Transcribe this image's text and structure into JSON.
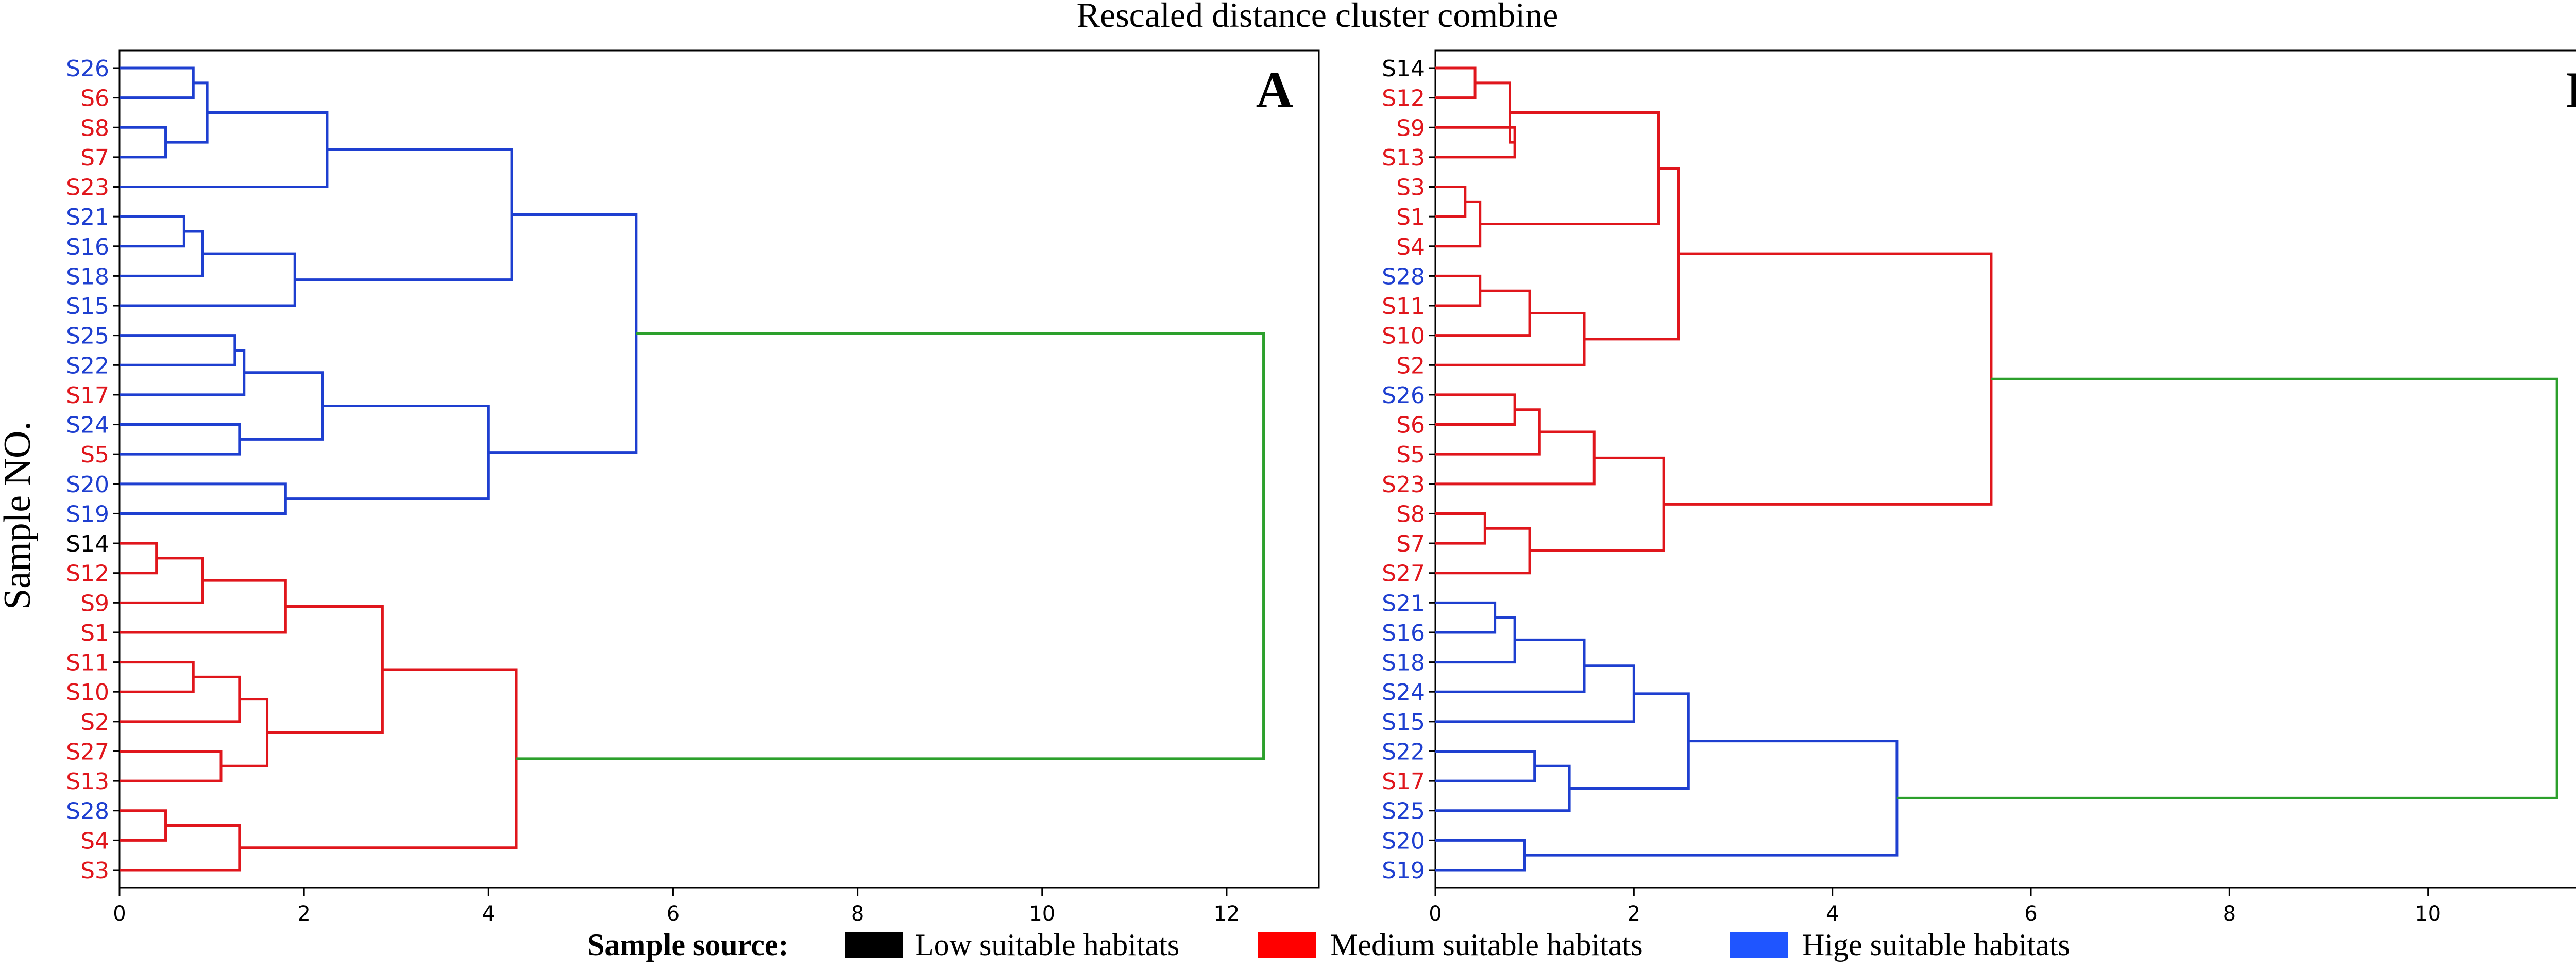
{
  "figure": {
    "title": "Rescaled distance cluster combine",
    "ylabel": "Sample NO.",
    "legend_title": "Sample source:",
    "legend_items": [
      {
        "label": "Low suitable habitats",
        "color": "#000000"
      },
      {
        "label": "Medium suitable habitats",
        "color": "#ff0000"
      },
      {
        "label": "Hige suitable habitats",
        "color": "#1f55ff"
      }
    ],
    "colors": {
      "low": "#000000",
      "medium": "#e0161c",
      "high": "#1e3fd0",
      "link": "#2ca02c"
    }
  },
  "chart_data": [
    {
      "type": "dendrogram",
      "panel": "A",
      "xlim": [
        0,
        13
      ],
      "xticks": [
        0,
        2,
        4,
        6,
        8,
        10,
        12
      ],
      "leaves": [
        {
          "label": "S26",
          "class": "high"
        },
        {
          "label": "S6",
          "class": "medium"
        },
        {
          "label": "S8",
          "class": "medium"
        },
        {
          "label": "S7",
          "class": "medium"
        },
        {
          "label": "S23",
          "class": "medium"
        },
        {
          "label": "S21",
          "class": "high"
        },
        {
          "label": "S16",
          "class": "high"
        },
        {
          "label": "S18",
          "class": "high"
        },
        {
          "label": "S15",
          "class": "high"
        },
        {
          "label": "S25",
          "class": "high"
        },
        {
          "label": "S22",
          "class": "high"
        },
        {
          "label": "S17",
          "class": "medium"
        },
        {
          "label": "S24",
          "class": "high"
        },
        {
          "label": "S5",
          "class": "medium"
        },
        {
          "label": "S20",
          "class": "high"
        },
        {
          "label": "S19",
          "class": "high"
        },
        {
          "label": "S14",
          "class": "low"
        },
        {
          "label": "S12",
          "class": "medium"
        },
        {
          "label": "S9",
          "class": "medium"
        },
        {
          "label": "S1",
          "class": "medium"
        },
        {
          "label": "S11",
          "class": "medium"
        },
        {
          "label": "S10",
          "class": "medium"
        },
        {
          "label": "S2",
          "class": "medium"
        },
        {
          "label": "S27",
          "class": "medium"
        },
        {
          "label": "S13",
          "class": "medium"
        },
        {
          "label": "S28",
          "class": "high"
        },
        {
          "label": "S4",
          "class": "medium"
        },
        {
          "label": "S3",
          "class": "medium"
        }
      ],
      "merges": [
        {
          "a": 0,
          "b": 1,
          "h": 0.8,
          "color": "high"
        },
        {
          "a": 2,
          "b": 3,
          "h": 0.5,
          "color": "high"
        },
        {
          "a": "n0",
          "b": "n1",
          "h": 0.95,
          "color": "high"
        },
        {
          "a": "n2",
          "b": 4,
          "h": 2.25,
          "color": "high"
        },
        {
          "a": 5,
          "b": 6,
          "h": 0.7,
          "color": "high"
        },
        {
          "a": "n4",
          "b": 7,
          "h": 0.9,
          "color": "high"
        },
        {
          "a": "n5",
          "b": 8,
          "h": 1.9,
          "color": "high"
        },
        {
          "a": "n3",
          "b": "n6",
          "h": 4.25,
          "color": "high"
        },
        {
          "a": 9,
          "b": 10,
          "h": 1.25,
          "color": "high"
        },
        {
          "a": "n8",
          "b": 11,
          "h": 1.35,
          "color": "high"
        },
        {
          "a": 12,
          "b": 13,
          "h": 1.3,
          "color": "high"
        },
        {
          "a": "n9",
          "b": "n10",
          "h": 2.2,
          "color": "high"
        },
        {
          "a": 14,
          "b": 15,
          "h": 1.8,
          "color": "high"
        },
        {
          "a": "n11",
          "b": "n12",
          "h": 4.0,
          "color": "high"
        },
        {
          "a": "n7",
          "b": "n13",
          "h": 5.6,
          "color": "high"
        },
        {
          "a": 16,
          "b": 17,
          "h": 0.4,
          "color": "medium"
        },
        {
          "a": "n15",
          "b": 18,
          "h": 0.9,
          "color": "medium"
        },
        {
          "a": "n16",
          "b": 19,
          "h": 1.8,
          "color": "medium"
        },
        {
          "a": 20,
          "b": 21,
          "h": 0.8,
          "color": "medium"
        },
        {
          "a": "n18",
          "b": 22,
          "h": 1.3,
          "color": "medium"
        },
        {
          "a": 23,
          "b": 24,
          "h": 1.1,
          "color": "medium"
        },
        {
          "a": "n19",
          "b": "n20",
          "h": 1.6,
          "color": "medium"
        },
        {
          "a": "n17",
          "b": "n21",
          "h": 2.85,
          "color": "medium"
        },
        {
          "a": 25,
          "b": 26,
          "h": 0.5,
          "color": "medium"
        },
        {
          "a": "n23",
          "b": 27,
          "h": 1.3,
          "color": "medium"
        },
        {
          "a": "n22",
          "b": "n24",
          "h": 4.3,
          "color": "medium"
        },
        {
          "a": "n14",
          "b": "n25",
          "h": 12.4,
          "color": "link"
        }
      ]
    },
    {
      "type": "dendrogram",
      "panel": "B",
      "xlim": [
        0,
        12
      ],
      "xticks": [
        0,
        2,
        4,
        6,
        8,
        10
      ],
      "leaves": [
        {
          "label": "S14",
          "class": "low"
        },
        {
          "label": "S12",
          "class": "medium"
        },
        {
          "label": "S9",
          "class": "medium"
        },
        {
          "label": "S13",
          "class": "medium"
        },
        {
          "label": "S3",
          "class": "medium"
        },
        {
          "label": "S1",
          "class": "medium"
        },
        {
          "label": "S4",
          "class": "medium"
        },
        {
          "label": "S28",
          "class": "high"
        },
        {
          "label": "S11",
          "class": "medium"
        },
        {
          "label": "S10",
          "class": "medium"
        },
        {
          "label": "S2",
          "class": "medium"
        },
        {
          "label": "S26",
          "class": "high"
        },
        {
          "label": "S6",
          "class": "medium"
        },
        {
          "label": "S5",
          "class": "medium"
        },
        {
          "label": "S23",
          "class": "medium"
        },
        {
          "label": "S8",
          "class": "medium"
        },
        {
          "label": "S7",
          "class": "medium"
        },
        {
          "label": "S27",
          "class": "medium"
        },
        {
          "label": "S21",
          "class": "high"
        },
        {
          "label": "S16",
          "class": "high"
        },
        {
          "label": "S18",
          "class": "high"
        },
        {
          "label": "S24",
          "class": "high"
        },
        {
          "label": "S15",
          "class": "high"
        },
        {
          "label": "S22",
          "class": "high"
        },
        {
          "label": "S17",
          "class": "medium"
        },
        {
          "label": "S25",
          "class": "high"
        },
        {
          "label": "S20",
          "class": "high"
        },
        {
          "label": "S19",
          "class": "high"
        }
      ],
      "merges": [
        {
          "a": 0,
          "b": 1,
          "h": 0.4,
          "color": "medium"
        },
        {
          "a": 2,
          "b": 3,
          "h": 0.8,
          "color": "medium"
        },
        {
          "a": "n0",
          "b": "n1",
          "h": 0.75,
          "color": "medium"
        },
        {
          "a": 4,
          "b": 5,
          "h": 0.3,
          "color": "medium"
        },
        {
          "a": "n3",
          "b": 6,
          "h": 0.45,
          "color": "medium"
        },
        {
          "a": "n2",
          "b": "n4",
          "h": 2.25,
          "color": "medium"
        },
        {
          "a": 7,
          "b": 8,
          "h": 0.45,
          "color": "medium"
        },
        {
          "a": "n6",
          "b": 9,
          "h": 0.95,
          "color": "medium"
        },
        {
          "a": "n7",
          "b": 10,
          "h": 1.5,
          "color": "medium"
        },
        {
          "a": "n5",
          "b": "n8",
          "h": 2.45,
          "color": "medium"
        },
        {
          "a": 11,
          "b": 12,
          "h": 0.8,
          "color": "medium"
        },
        {
          "a": "n10",
          "b": 13,
          "h": 1.05,
          "color": "medium"
        },
        {
          "a": "n11",
          "b": 14,
          "h": 1.6,
          "color": "medium"
        },
        {
          "a": 15,
          "b": 16,
          "h": 0.5,
          "color": "medium"
        },
        {
          "a": "n13",
          "b": 17,
          "h": 0.95,
          "color": "medium"
        },
        {
          "a": "n12",
          "b": "n14",
          "h": 2.3,
          "color": "medium"
        },
        {
          "a": "n9",
          "b": "n15",
          "h": 5.6,
          "color": "medium"
        },
        {
          "a": 18,
          "b": 19,
          "h": 0.6,
          "color": "high"
        },
        {
          "a": "n17",
          "b": 20,
          "h": 0.8,
          "color": "high"
        },
        {
          "a": "n18",
          "b": 21,
          "h": 1.5,
          "color": "high"
        },
        {
          "a": "n19",
          "b": 22,
          "h": 2.0,
          "color": "high"
        },
        {
          "a": 23,
          "b": 24,
          "h": 1.0,
          "color": "high"
        },
        {
          "a": "n21",
          "b": 25,
          "h": 1.35,
          "color": "high"
        },
        {
          "a": "n20",
          "b": "n22",
          "h": 2.55,
          "color": "high"
        },
        {
          "a": 26,
          "b": 27,
          "h": 0.9,
          "color": "high"
        },
        {
          "a": "n23",
          "b": "n24",
          "h": 4.65,
          "color": "high"
        },
        {
          "a": "n16",
          "b": "n25",
          "h": 11.3,
          "color": "link"
        }
      ]
    }
  ]
}
